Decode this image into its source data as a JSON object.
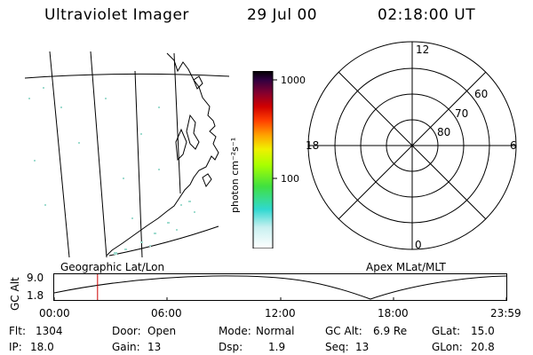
{
  "header": {
    "instrument": "Ultraviolet Imager",
    "date": "29 Jul 00",
    "time": "02:18:00 UT"
  },
  "colorbar": {
    "label": "photon cm⁻²s⁻¹",
    "ticks": [
      "1000",
      "100"
    ],
    "stops": [
      "#ffffff",
      "#c8f0f0",
      "#30d8d0",
      "#40e040",
      "#a8ff00",
      "#f0f000",
      "#ffa000",
      "#ff4000",
      "#d00000",
      "#800030",
      "#300040",
      "#000000"
    ]
  },
  "polar_plot": {
    "mlt_labels": {
      "top": "12",
      "bottom": "0",
      "left": "18",
      "right": "6"
    },
    "lat_labels": [
      "60",
      "70",
      "80"
    ]
  },
  "map_labels": {
    "left": "Geographic Lat/Lon",
    "right": "Apex MLat/MLT"
  },
  "altitude_panel": {
    "axis_label": "GC Alt",
    "ymax": "9.0",
    "ymin": "1.8",
    "time_ticks": [
      "00:00",
      "06:00",
      "12:00",
      "18:00",
      "23:59"
    ],
    "marker_time": "02:18"
  },
  "footer": {
    "row1": {
      "flt_label": "Flt:",
      "flt_value": "1304",
      "door_label": "Door:",
      "door_value": "Open",
      "mode_label": "Mode:",
      "mode_value": "Normal",
      "gcalt_label": "GC Alt:",
      "gcalt_value": "6.9 Re",
      "glat_label": "GLat:",
      "glat_value": "15.0"
    },
    "row2": {
      "ip_label": "IP:",
      "ip_value": "18.0",
      "gain_label": "Gain:",
      "gain_value": "13",
      "dsp_label": "Dsp:",
      "dsp_value": "1.9",
      "seq_label": "Seq:",
      "seq_value": "13",
      "glon_label": "GLon:",
      "glon_value": "20.8"
    }
  },
  "colors": {
    "marker": "#cc0000",
    "foreground": "#000000",
    "background": "#ffffff"
  }
}
